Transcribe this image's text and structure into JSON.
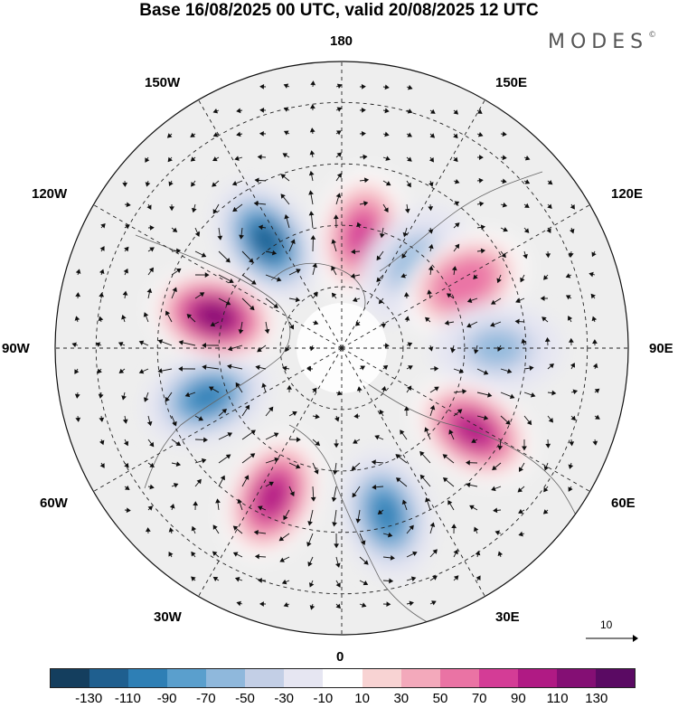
{
  "title": "Base 16/08/2025 00 UTC, valid 20/08/2025 12 UTC",
  "logo": {
    "text": "MODES",
    "mark": "©"
  },
  "longitude_labels": {
    "lon_180": "180",
    "lon_150e": "150E",
    "lon_120e": "120E",
    "lon_90e": "90E",
    "lon_60e": "60E",
    "lon_30e": "30E",
    "lon_0": "0",
    "lon_30w": "30W",
    "lon_60w": "60W",
    "lon_90w": "90W",
    "lon_120w": "120W",
    "lon_150w": "150W"
  },
  "reference_vector": {
    "value": "10"
  },
  "colorbar": {
    "colors": [
      "#143e5e",
      "#1f5f8f",
      "#2e7fb5",
      "#5a9fcd",
      "#8fb8dc",
      "#c3cfe6",
      "#e6e6f2",
      "#ffffff",
      "#f8d3d3",
      "#f3a9bb",
      "#ea73a4",
      "#d43c96",
      "#b01a84",
      "#840f74",
      "#5a0a63"
    ],
    "tick_labels": [
      "-130",
      "-110",
      "-90",
      "-70",
      "-50",
      "-30",
      "-10",
      "10",
      "30",
      "50",
      "70",
      "90",
      "110",
      "130"
    ]
  },
  "anomaly_centers": [
    {
      "lon": -145,
      "lat": 58,
      "value": -110
    },
    {
      "lon": 170,
      "lat": 62,
      "value": 80
    },
    {
      "lon": 140,
      "lat": 63,
      "value": -55
    },
    {
      "lon": 118,
      "lat": 56,
      "value": 70
    },
    {
      "lon": 90,
      "lat": 52,
      "value": -60
    },
    {
      "lon": 58,
      "lat": 52,
      "value": 95
    },
    {
      "lon": 15,
      "lat": 48,
      "value": -95
    },
    {
      "lon": -25,
      "lat": 50,
      "value": 100
    },
    {
      "lon": -70,
      "lat": 55,
      "value": -100
    },
    {
      "lon": -104,
      "lat": 58,
      "value": 120
    }
  ]
}
